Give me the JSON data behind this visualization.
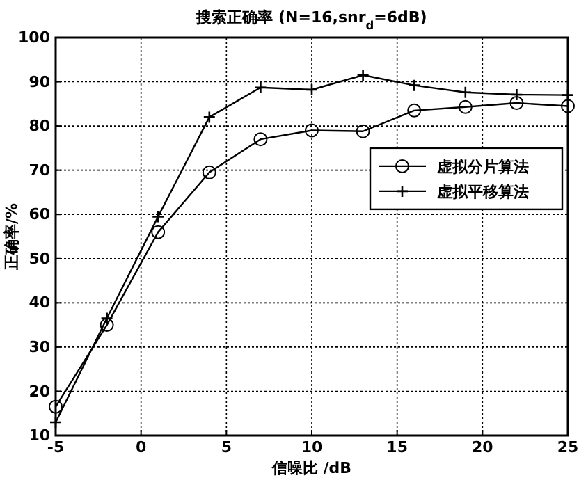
{
  "chart_data": {
    "type": "line",
    "title": "搜索正确率 (N=16,snr$_{d}$=6dB)",
    "xlabel": "信噪比 /dB",
    "ylabel": "正确率/%",
    "x": [
      -5,
      -2,
      1,
      4,
      7,
      10,
      13,
      16,
      19,
      22,
      25
    ],
    "series": [
      {
        "name": "虚拟分片算法",
        "color": "#000000",
        "marker": "circle",
        "values": [
          16.5,
          35,
          56,
          69.5,
          77,
          79,
          78.8,
          83.5,
          84.3,
          85.2,
          84.5
        ]
      },
      {
        "name": "虚拟平移算法",
        "color": "#000000",
        "marker": "cross",
        "values": [
          13,
          36.5,
          59.5,
          82,
          88.7,
          88.2,
          91.5,
          89.2,
          87.6,
          87.1,
          87
        ]
      }
    ],
    "xlim": [
      -5,
      25
    ],
    "xticks": [
      -5,
      0,
      5,
      10,
      15,
      20,
      25
    ],
    "ylim": [
      10,
      100
    ],
    "yticks": [
      10,
      20,
      30,
      40,
      50,
      60,
      70,
      80,
      90,
      100
    ],
    "grid": true,
    "legend": "right",
    "line_style": "solid"
  }
}
